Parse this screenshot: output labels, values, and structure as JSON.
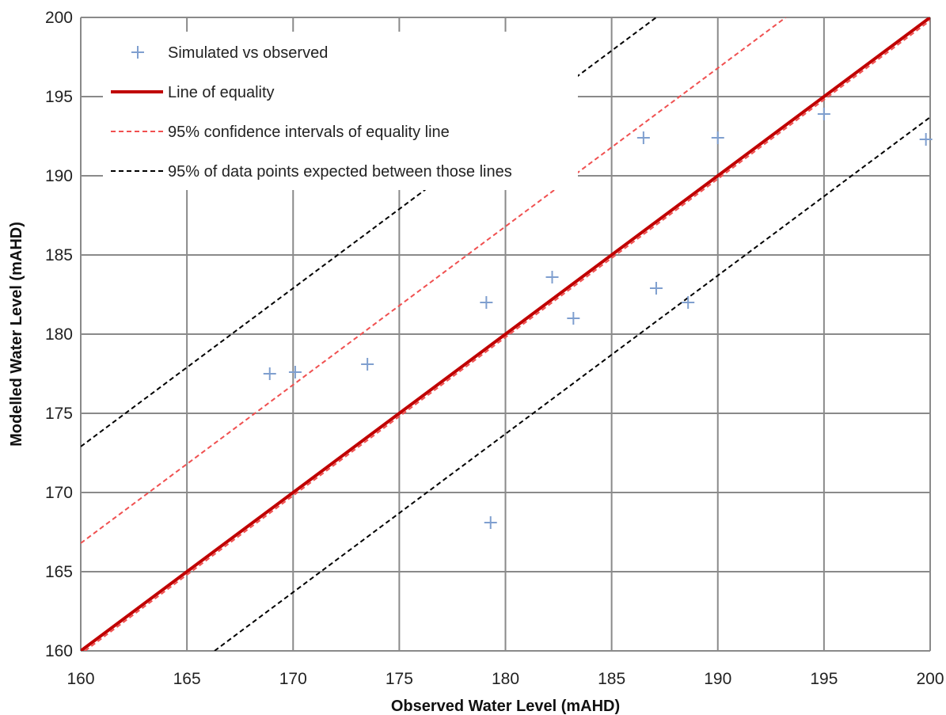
{
  "chart_data": {
    "type": "scatter",
    "title": "",
    "xlabel": "Observed Water Level (mAHD)",
    "ylabel": "Modelled Water Level (mAHD)",
    "xlim": [
      160,
      200
    ],
    "ylim": [
      160,
      200
    ],
    "x_ticks": [
      160,
      165,
      170,
      175,
      180,
      185,
      190,
      195,
      200
    ],
    "y_ticks": [
      160,
      165,
      170,
      175,
      180,
      185,
      190,
      195,
      200
    ],
    "grid": true,
    "legend_position": "top-left",
    "series": [
      {
        "name": "Simulated vs observed",
        "kind": "scatter",
        "marker": "plus",
        "color": "#7f9fcf",
        "points": [
          [
            168.9,
            177.5
          ],
          [
            170.1,
            177.6
          ],
          [
            173.5,
            178.1
          ],
          [
            179.1,
            182.0
          ],
          [
            179.3,
            168.1
          ],
          [
            182.2,
            183.6
          ],
          [
            183.2,
            181.0
          ],
          [
            186.5,
            192.4
          ],
          [
            187.1,
            182.9
          ],
          [
            188.6,
            182.0
          ],
          [
            190.0,
            192.4
          ],
          [
            195.0,
            193.9
          ],
          [
            199.8,
            192.3
          ]
        ]
      },
      {
        "name": "Line of equality",
        "kind": "line",
        "style": "solid",
        "color": "#c00000",
        "points": [
          [
            160,
            160
          ],
          [
            200,
            200
          ]
        ]
      },
      {
        "name": "95% confidence intervals of equality line",
        "kind": "line",
        "style": "dashed",
        "color": "#f05050",
        "lines": [
          [
            [
              160,
              166.8
            ],
            [
              193.2,
              200
            ]
          ],
          [
            [
              160.2,
              160
            ],
            [
              200,
              199.8
            ]
          ]
        ]
      },
      {
        "name": "95% of data points expected between those lines",
        "kind": "line",
        "style": "dashed",
        "color": "#000000",
        "lines": [
          [
            [
              160,
              172.9
            ],
            [
              187.1,
              200
            ]
          ],
          [
            [
              166.3,
              160
            ],
            [
              200,
              193.7
            ]
          ]
        ]
      }
    ]
  }
}
